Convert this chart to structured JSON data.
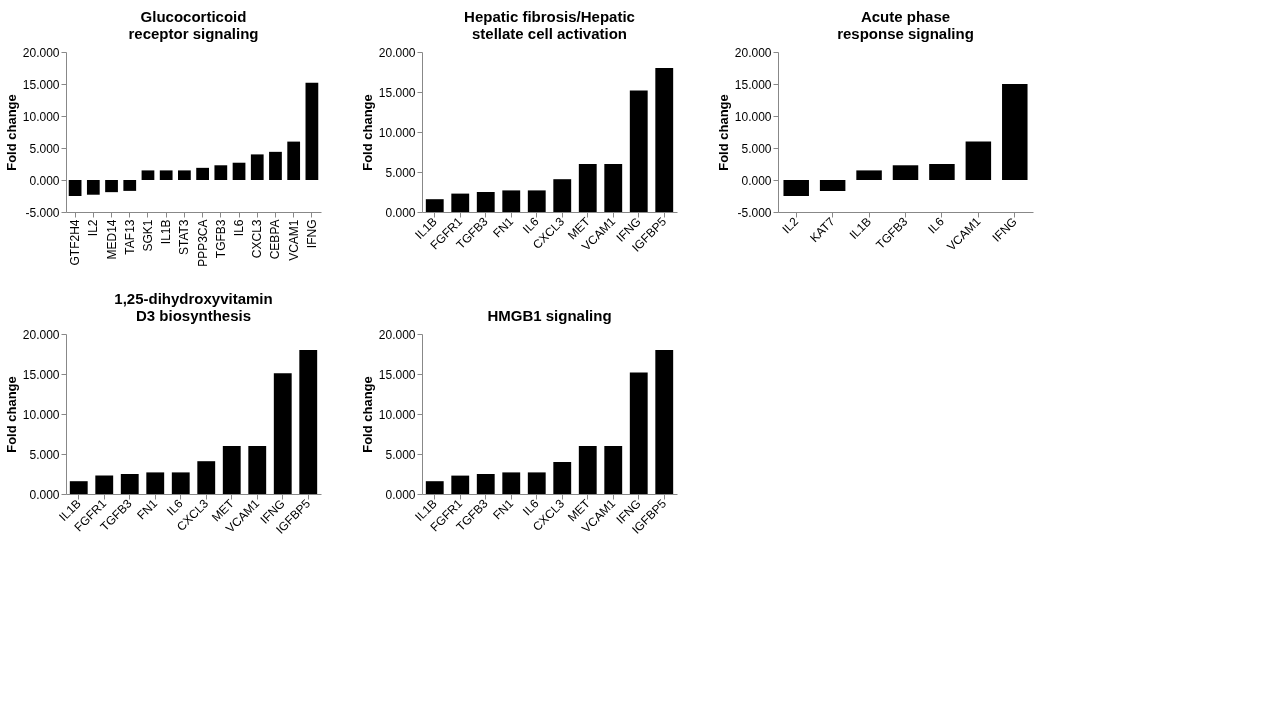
{
  "chart_data": [
    {
      "type": "bar",
      "title": "Glucocorticoid\nreceptor signaling",
      "ylabel": "Fold change",
      "color": "#000000",
      "grid": false,
      "categories": [
        "GTF2H4",
        "IL2",
        "MED14",
        "TAF13",
        "SGK1",
        "IL1B",
        "STAT3",
        "PPP3CA",
        "TGFB3",
        "IL6",
        "CXCL3",
        "CEBPA",
        "VCAM1",
        "IFNG"
      ],
      "values": [
        -2.5,
        -2.3,
        -1.9,
        -1.7,
        1.5,
        1.5,
        1.5,
        1.9,
        2.3,
        2.7,
        4.0,
        4.4,
        6.0,
        15.2
      ],
      "ylim": [
        -5,
        20
      ],
      "yticks": [
        {
          "value": -5,
          "label": "-5.000"
        },
        {
          "value": 0,
          "label": "0.000"
        },
        {
          "value": 5,
          "label": "5.000"
        },
        {
          "value": 10,
          "label": "10.000"
        },
        {
          "value": 15,
          "label": "15.000"
        },
        {
          "value": 20,
          "label": "20.000"
        }
      ]
    },
    {
      "type": "bar",
      "title": "Hepatic fibrosis/Hepatic\nstellate cell activation",
      "ylabel": "Fold change",
      "color": "#000000",
      "grid": false,
      "categories": [
        "IL1B",
        "FGFR1",
        "TGFB3",
        "FN1",
        "IL6",
        "CXCL3",
        "MET",
        "VCAM1",
        "IFNG",
        "IGFBP5"
      ],
      "values": [
        1.6,
        2.3,
        2.5,
        2.7,
        2.7,
        4.1,
        6.0,
        6.0,
        15.2,
        18.0
      ],
      "ylim": [
        0,
        20
      ],
      "yticks": [
        {
          "value": 0,
          "label": "0.000"
        },
        {
          "value": 5,
          "label": "5.000"
        },
        {
          "value": 10,
          "label": "10.000"
        },
        {
          "value": 15,
          "label": "15.000"
        },
        {
          "value": 20,
          "label": "20.000"
        }
      ]
    },
    {
      "type": "bar",
      "title": "Acute phase\nresponse signaling",
      "ylabel": "Fold change",
      "color": "#000000",
      "grid": false,
      "categories": [
        "IL2",
        "KAT7",
        "IL1B",
        "TGFB3",
        "IL6",
        "VCAM1",
        "IFNG"
      ],
      "values": [
        -2.5,
        -1.7,
        1.5,
        2.3,
        2.5,
        6.0,
        15.0
      ],
      "ylim": [
        -5,
        20
      ],
      "yticks": [
        {
          "value": -5,
          "label": "-5.000"
        },
        {
          "value": 0,
          "label": "0.000"
        },
        {
          "value": 5,
          "label": "5.000"
        },
        {
          "value": 10,
          "label": "10.000"
        },
        {
          "value": 15,
          "label": "15.000"
        },
        {
          "value": 20,
          "label": "20.000"
        }
      ]
    },
    {
      "type": "bar",
      "title": "1,25-dihydroxyvitamin\nD3 biosynthesis",
      "ylabel": "Fold change",
      "color": "#000000",
      "grid": false,
      "categories": [
        "IL1B",
        "FGFR1",
        "TGFB3",
        "FN1",
        "IL6",
        "CXCL3",
        "MET",
        "VCAM1",
        "IFNG",
        "IGFBP5"
      ],
      "values": [
        1.6,
        2.3,
        2.5,
        2.7,
        2.7,
        4.1,
        6.0,
        6.0,
        15.1,
        18.0
      ],
      "ylim": [
        0,
        20
      ],
      "yticks": [
        {
          "value": 0,
          "label": "0.000"
        },
        {
          "value": 5,
          "label": "5.000"
        },
        {
          "value": 10,
          "label": "10.000"
        },
        {
          "value": 15,
          "label": "15.000"
        },
        {
          "value": 20,
          "label": "20.000"
        }
      ]
    },
    {
      "type": "bar",
      "title": "HMGB1 signaling",
      "ylabel": "Fold change",
      "color": "#000000",
      "grid": false,
      "categories": [
        "IL1B",
        "FGFR1",
        "TGFB3",
        "FN1",
        "IL6",
        "CXCL3",
        "MET",
        "VCAM1",
        "IFNG",
        "IGFBP5"
      ],
      "values": [
        1.6,
        2.3,
        2.5,
        2.7,
        2.7,
        4.0,
        6.0,
        6.0,
        15.2,
        18.0
      ],
      "ylim": [
        0,
        20
      ],
      "yticks": [
        {
          "value": 0,
          "label": "0.000"
        },
        {
          "value": 5,
          "label": "5.000"
        },
        {
          "value": 10,
          "label": "10.000"
        },
        {
          "value": 15,
          "label": "15.000"
        },
        {
          "value": 20,
          "label": "20.000"
        }
      ]
    }
  ]
}
